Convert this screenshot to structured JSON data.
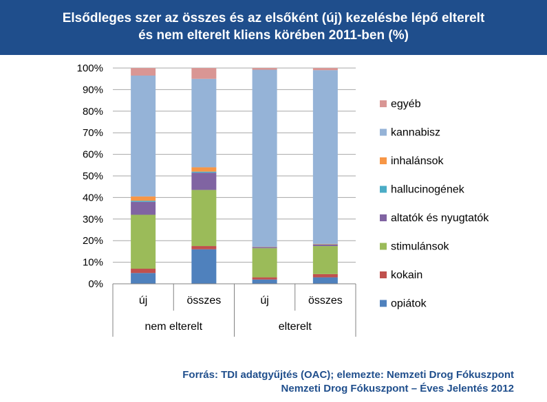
{
  "title": {
    "line1": "Elsődleges szer az összes és az elsőként (új) kezelésbe lépő elterelt",
    "line2": "és nem elterelt kliens körében 2011-ben (%)"
  },
  "source": {
    "line1": "Forrás: TDI adatgyűjtés (OAC); elemezte: Nemzeti Drog Fókuszpont",
    "line2": "Nemzeti Drog Fókuszpont – Éves Jelentés 2012"
  },
  "chart_data": {
    "type": "bar",
    "stacked": true,
    "categories": [
      "új",
      "összes",
      "új",
      "összes"
    ],
    "groups": [
      {
        "label": "nem elterelt",
        "categories": [
          0,
          1
        ]
      },
      {
        "label": "elterelt",
        "categories": [
          2,
          3
        ]
      }
    ],
    "ylim": [
      0,
      100
    ],
    "yticks": [
      "0%",
      "10%",
      "20%",
      "30%",
      "40%",
      "50%",
      "60%",
      "70%",
      "80%",
      "90%",
      "100%"
    ],
    "grid": true,
    "legend_position": "right",
    "series": [
      {
        "name": "opiátok",
        "color": "#4f81bd",
        "values": [
          5,
          16,
          2,
          3
        ]
      },
      {
        "name": "kokain",
        "color": "#c0504d",
        "values": [
          2,
          1.5,
          1,
          1.5
        ]
      },
      {
        "name": "stimulánsok",
        "color": "#9bbb59",
        "values": [
          25,
          26,
          13.5,
          13
        ]
      },
      {
        "name": "altatók és nyugtatók",
        "color": "#8064a2",
        "values": [
          6,
          8,
          0.5,
          0.7
        ]
      },
      {
        "name": "hallucinogének",
        "color": "#4bacc6",
        "values": [
          0.5,
          0.5,
          0.1,
          0.1
        ]
      },
      {
        "name": "inhalánsok",
        "color": "#f79646",
        "values": [
          2,
          2,
          0.1,
          0.2
        ]
      },
      {
        "name": "kannabisz",
        "color": "#95b3d7",
        "values": [
          56,
          41,
          82,
          80.5
        ]
      },
      {
        "name": "egyéb",
        "color": "#d99694",
        "values": [
          3.5,
          5,
          0.8,
          1
        ]
      }
    ]
  }
}
